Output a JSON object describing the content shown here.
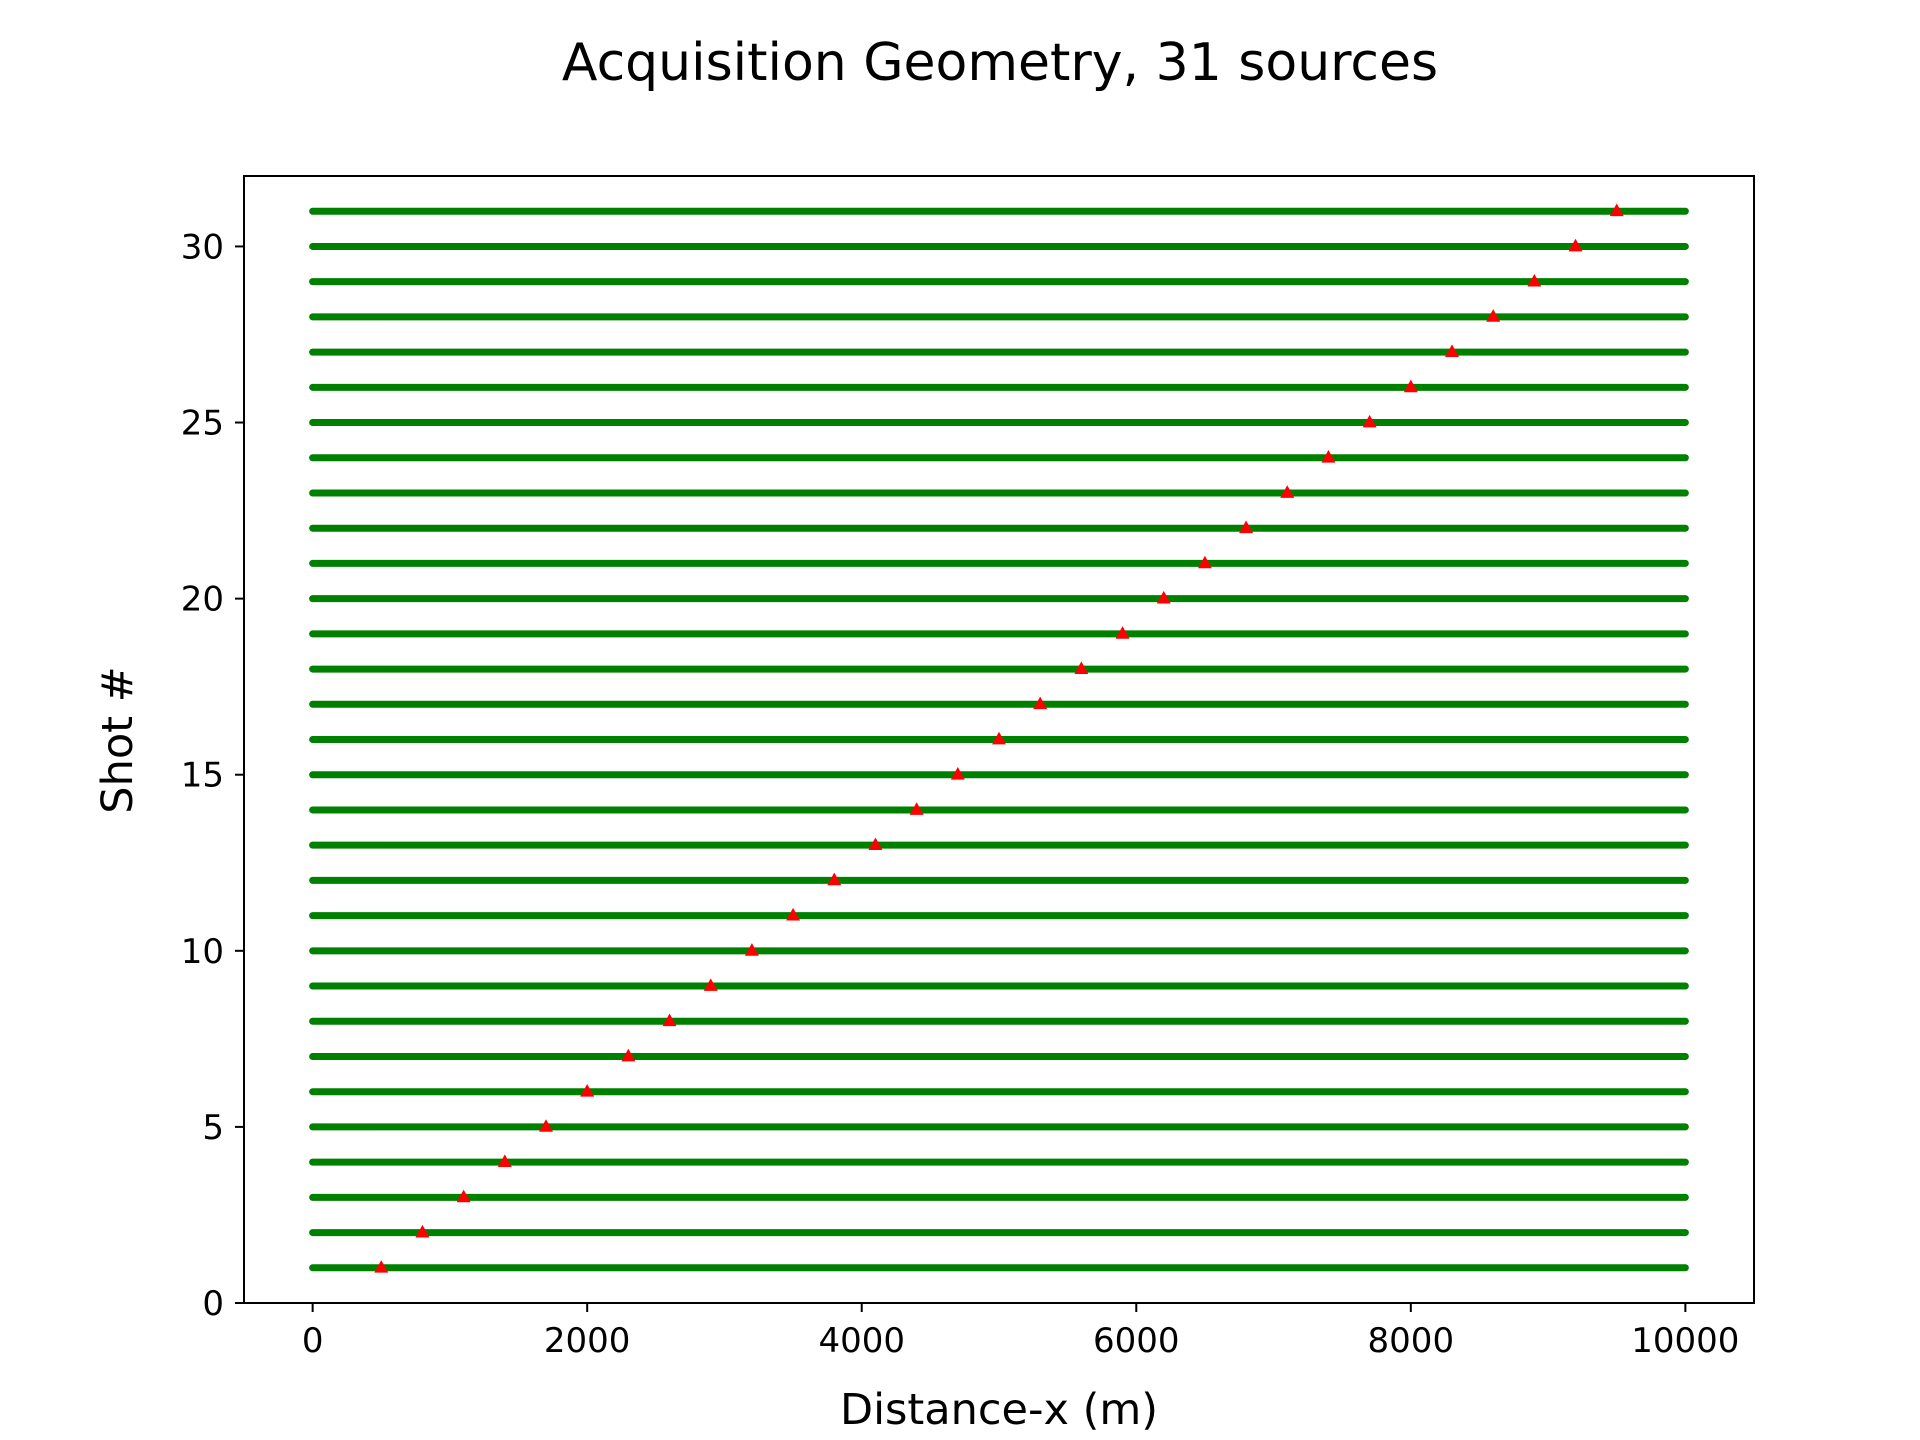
{
  "chart_data": {
    "type": "scatter",
    "title": "Acquisition Geometry, 31 sources",
    "xlabel": "Distance-x (m)",
    "ylabel": "Shot #",
    "xlim": [
      -500,
      10500
    ],
    "ylim": [
      0,
      32
    ],
    "xticks": [
      0,
      2000,
      4000,
      6000,
      8000,
      10000
    ],
    "yticks": [
      0,
      5,
      10,
      15,
      20,
      25,
      30
    ],
    "grid": false,
    "legend": "none",
    "series": [
      {
        "kind": "receivers",
        "marker": "dot",
        "color": "#008000",
        "x_range": [
          0,
          10000
        ],
        "shots": [
          1,
          2,
          3,
          4,
          5,
          6,
          7,
          8,
          9,
          10,
          11,
          12,
          13,
          14,
          15,
          16,
          17,
          18,
          19,
          20,
          21,
          22,
          23,
          24,
          25,
          26,
          27,
          28,
          29,
          30,
          31
        ]
      },
      {
        "kind": "sources",
        "marker": "triangle",
        "color": "#ff0000",
        "x": [
          500,
          800,
          1100,
          1400,
          1700,
          2000,
          2300,
          2600,
          2900,
          3200,
          3500,
          3800,
          4100,
          4400,
          4700,
          5000,
          5300,
          5600,
          5900,
          6200,
          6500,
          6800,
          7100,
          7400,
          7700,
          8000,
          8300,
          8600,
          8900,
          9200,
          9500
        ],
        "y": [
          1,
          2,
          3,
          4,
          5,
          6,
          7,
          8,
          9,
          10,
          11,
          12,
          13,
          14,
          15,
          16,
          17,
          18,
          19,
          20,
          21,
          22,
          23,
          24,
          25,
          26,
          27,
          28,
          29,
          30,
          31
        ]
      }
    ]
  }
}
